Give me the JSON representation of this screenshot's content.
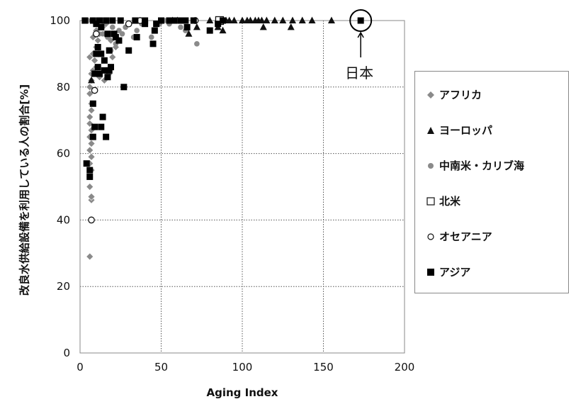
{
  "chart_data": {
    "type": "scatter",
    "xlabel": "Aging Index",
    "ylabel": "改良水供給設備を利用している人の割合[%]",
    "xlim": [
      0,
      200
    ],
    "ylim": [
      0,
      100
    ],
    "xticks": [
      0,
      50,
      100,
      150,
      200
    ],
    "yticks": [
      0,
      20,
      40,
      60,
      80,
      100
    ],
    "grid": "dotted",
    "legend_position": "right",
    "annotation": {
      "text": "日本",
      "x": 173,
      "y": 100
    },
    "series": [
      {
        "name": "アフリカ",
        "marker": "diamond",
        "color": "#8a8a8a",
        "points": [
          [
            6,
            29
          ],
          [
            7,
            46
          ],
          [
            7,
            47
          ],
          [
            6,
            50
          ],
          [
            6,
            53
          ],
          [
            7,
            55
          ],
          [
            6,
            57
          ],
          [
            7,
            59
          ],
          [
            6,
            61
          ],
          [
            7,
            63
          ],
          [
            6,
            65
          ],
          [
            7,
            67
          ],
          [
            6,
            69
          ],
          [
            6,
            71
          ],
          [
            7,
            73
          ],
          [
            7,
            75
          ],
          [
            6,
            78
          ],
          [
            6,
            80
          ],
          [
            7,
            82
          ],
          [
            7,
            84
          ],
          [
            8,
            85
          ],
          [
            9,
            88
          ],
          [
            6,
            89
          ],
          [
            8,
            90
          ],
          [
            10,
            92
          ],
          [
            11,
            94
          ],
          [
            8,
            95
          ],
          [
            12,
            96
          ],
          [
            10,
            97
          ],
          [
            14,
            98
          ],
          [
            16,
            99
          ],
          [
            8,
            100
          ],
          [
            5,
            100
          ],
          [
            12,
            100
          ],
          [
            10,
            86
          ],
          [
            12,
            83
          ],
          [
            15,
            82
          ],
          [
            18,
            84
          ],
          [
            20,
            89
          ],
          [
            22,
            92
          ],
          [
            19,
            94
          ]
        ]
      },
      {
        "name": "ヨーロッパ",
        "marker": "triangle",
        "color": "#111111",
        "points": [
          [
            57,
            100
          ],
          [
            60,
            100
          ],
          [
            67,
            96
          ],
          [
            72,
            98
          ],
          [
            80,
            100
          ],
          [
            85,
            98
          ],
          [
            88,
            97
          ],
          [
            90,
            100
          ],
          [
            92,
            100
          ],
          [
            95,
            100
          ],
          [
            100,
            100
          ],
          [
            103,
            100
          ],
          [
            105,
            100
          ],
          [
            108,
            100
          ],
          [
            110,
            100
          ],
          [
            112,
            100
          ],
          [
            113,
            98
          ],
          [
            115,
            100
          ],
          [
            120,
            100
          ],
          [
            125,
            100
          ],
          [
            130,
            98
          ],
          [
            131,
            100
          ],
          [
            137,
            100
          ],
          [
            143,
            100
          ],
          [
            155,
            100
          ],
          [
            7,
            82
          ],
          [
            86,
            100
          ]
        ]
      },
      {
        "name": "中南米・カリブ海",
        "marker": "circle",
        "color": "#8a8a8a",
        "points": [
          [
            14,
            96
          ],
          [
            17,
            95
          ],
          [
            19,
            91
          ],
          [
            22,
            93
          ],
          [
            24,
            97
          ],
          [
            26,
            96
          ],
          [
            28,
            98
          ],
          [
            30,
            99
          ],
          [
            33,
            95
          ],
          [
            35,
            97
          ],
          [
            38,
            99
          ],
          [
            40,
            100
          ],
          [
            44,
            95
          ],
          [
            46,
            97
          ],
          [
            49,
            99
          ],
          [
            52,
            100
          ],
          [
            55,
            99
          ],
          [
            60,
            100
          ],
          [
            62,
            98
          ],
          [
            65,
            97
          ],
          [
            72,
            93
          ],
          [
            15,
            99
          ],
          [
            20,
            98
          ]
        ]
      },
      {
        "name": "北米",
        "marker": "square-open",
        "color": "#111111",
        "points": [
          [
            86,
            100
          ]
        ]
      },
      {
        "name": "オセアニア",
        "marker": "circle-open",
        "color": "#111111",
        "points": [
          [
            7,
            40
          ],
          [
            9,
            79
          ],
          [
            10,
            96
          ],
          [
            30,
            99
          ],
          [
            37,
            100
          ],
          [
            71,
            100
          ]
        ]
      },
      {
        "name": "アジア",
        "marker": "square",
        "color": "#000000",
        "points": [
          [
            3,
            100
          ],
          [
            4,
            57
          ],
          [
            6,
            55
          ],
          [
            6,
            53
          ],
          [
            8,
            100
          ],
          [
            8,
            65
          ],
          [
            9,
            68
          ],
          [
            10,
            99
          ],
          [
            10,
            90
          ],
          [
            11,
            92
          ],
          [
            11,
            86
          ],
          [
            12,
            84
          ],
          [
            13,
            68
          ],
          [
            13,
            98
          ],
          [
            14,
            71
          ],
          [
            15,
            88
          ],
          [
            15,
            85
          ],
          [
            16,
            65
          ],
          [
            16,
            100
          ],
          [
            17,
            96
          ],
          [
            17,
            83
          ],
          [
            18,
            91
          ],
          [
            19,
            86
          ],
          [
            20,
            100
          ],
          [
            21,
            96
          ],
          [
            22,
            95
          ],
          [
            25,
            100
          ],
          [
            27,
            80
          ],
          [
            30,
            91
          ],
          [
            34,
            100
          ],
          [
            35,
            95
          ],
          [
            40,
            99
          ],
          [
            45,
            93
          ],
          [
            46,
            97
          ],
          [
            47,
            99
          ],
          [
            50,
            100
          ],
          [
            55,
            100
          ],
          [
            58,
            100
          ],
          [
            62,
            100
          ],
          [
            65,
            100
          ],
          [
            66,
            98
          ],
          [
            70,
            100
          ],
          [
            80,
            97
          ],
          [
            85,
            99
          ],
          [
            88,
            100
          ],
          [
            173,
            100
          ],
          [
            12,
            100
          ],
          [
            13,
            90
          ],
          [
            9,
            84
          ],
          [
            18,
            85
          ],
          [
            24,
            94
          ],
          [
            40,
            100
          ],
          [
            8,
            75
          ]
        ]
      }
    ]
  }
}
